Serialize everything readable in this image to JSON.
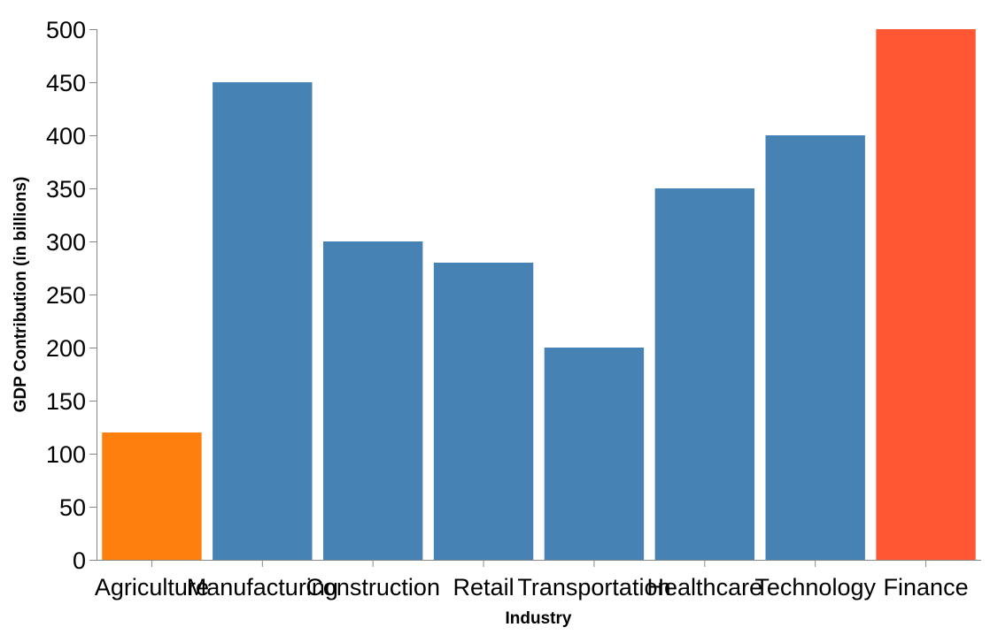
{
  "chart_data": {
    "type": "bar",
    "title": "",
    "xlabel": "Industry",
    "ylabel": "GDP Contribution (in billions)",
    "categories": [
      "Agriculture",
      "Manufacturing",
      "Construction",
      "Retail",
      "Transportation",
      "Healthcare",
      "Technology",
      "Finance"
    ],
    "values": [
      120,
      450,
      300,
      280,
      200,
      350,
      400,
      500
    ],
    "colors": [
      "#ff7f0e",
      "#4682b4",
      "#4682b4",
      "#4682b4",
      "#4682b4",
      "#4682b4",
      "#4682b4",
      "#ff5733"
    ],
    "ylim": [
      0,
      500
    ],
    "yticks": [
      0,
      50,
      100,
      150,
      200,
      250,
      300,
      350,
      400,
      450,
      500
    ],
    "grid": false,
    "legend": "none"
  }
}
